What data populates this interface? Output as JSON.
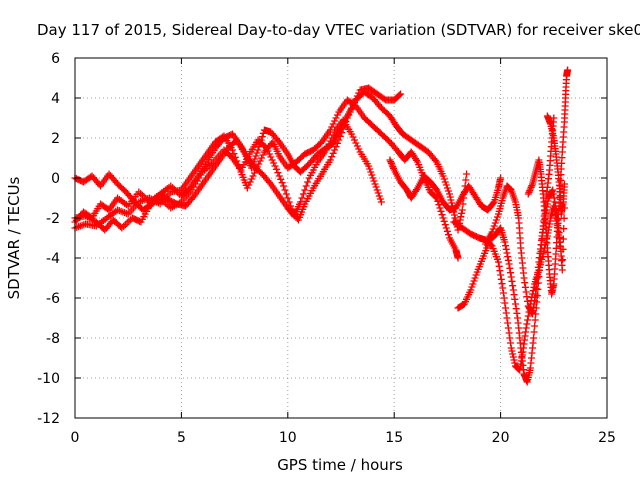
{
  "chart_data": {
    "type": "scatter",
    "title": "Day 117 of 2015, Sidereal Day-to-day VTEC variation (SDTVAR) for receiver ske0",
    "xlabel": "GPS time / hours",
    "ylabel": "SDTVAR / TECUs",
    "xlim": [
      0,
      25
    ],
    "ylim": [
      -12,
      6
    ],
    "x_ticks": [
      0,
      5,
      10,
      15,
      20,
      25
    ],
    "y_ticks": [
      -12,
      -10,
      -8,
      -6,
      -4,
      -2,
      0,
      2,
      4,
      6
    ],
    "x_tick_labels": [
      "0",
      "5",
      "10",
      "15",
      "20",
      "25"
    ],
    "y_tick_labels": [
      "-12",
      "-10",
      "-8",
      "-6",
      "-4",
      "-2",
      "0",
      "2",
      "4",
      "6"
    ],
    "grid": true,
    "marker": "+",
    "color": "#ff0000",
    "series": [
      {
        "points": [
          [
            0.0,
            -2.2
          ],
          [
            0.4,
            -1.7
          ],
          [
            0.8,
            -2.0
          ],
          [
            1.2,
            -1.3
          ],
          [
            1.6,
            -1.6
          ],
          [
            2.0,
            -1.0
          ],
          [
            2.5,
            -1.4
          ],
          [
            3.0,
            -0.7
          ],
          [
            3.5,
            -1.2
          ],
          [
            4.0,
            -0.8
          ],
          [
            4.5,
            -0.4
          ],
          [
            5.0,
            -0.9
          ],
          [
            5.4,
            -0.5
          ],
          [
            5.8,
            0.1
          ],
          [
            6.2,
            0.8
          ],
          [
            6.6,
            1.5
          ],
          [
            7.0,
            2.0
          ],
          [
            7.4,
            2.2
          ],
          [
            7.8,
            1.6
          ],
          [
            8.1,
            1.0
          ],
          [
            8.4,
            0.6
          ],
          [
            8.8,
            0.2
          ],
          [
            9.2,
            -0.3
          ],
          [
            9.6,
            -0.9
          ],
          [
            10.0,
            -1.5
          ],
          [
            10.3,
            -1.9
          ],
          [
            10.6,
            -1.2
          ],
          [
            11.0,
            0.0
          ],
          [
            11.4,
            0.8
          ],
          [
            11.8,
            1.4
          ],
          [
            12.2,
            2.3
          ],
          [
            12.6,
            2.9
          ],
          [
            13.0,
            2.2
          ],
          [
            13.4,
            1.3
          ],
          [
            13.8,
            0.6
          ],
          [
            14.1,
            -0.3
          ],
          [
            14.4,
            -1.2
          ]
        ]
      },
      {
        "points": [
          [
            0.0,
            -2.5
          ],
          [
            0.5,
            -2.3
          ],
          [
            1.0,
            -2.4
          ],
          [
            1.5,
            -2.0
          ],
          [
            2.0,
            -1.6
          ],
          [
            2.5,
            -1.8
          ],
          [
            3.0,
            -1.2
          ],
          [
            3.5,
            -1.0
          ],
          [
            4.0,
            -1.3
          ],
          [
            4.5,
            -0.7
          ],
          [
            5.0,
            -0.6
          ],
          [
            5.4,
            0.0
          ],
          [
            5.8,
            0.6
          ],
          [
            6.2,
            1.2
          ],
          [
            6.6,
            1.8
          ],
          [
            7.0,
            2.1
          ],
          [
            7.4,
            1.4
          ],
          [
            7.8,
            0.3
          ],
          [
            8.1,
            -0.5
          ],
          [
            8.5,
            0.4
          ],
          [
            8.9,
            1.3
          ],
          [
            9.3,
            1.8
          ],
          [
            9.6,
            1.1
          ],
          [
            10.0,
            0.5
          ],
          [
            10.4,
            0.8
          ],
          [
            10.8,
            1.2
          ],
          [
            11.2,
            1.4
          ],
          [
            11.6,
            1.8
          ],
          [
            12.0,
            2.4
          ],
          [
            12.4,
            3.3
          ],
          [
            12.8,
            3.9
          ],
          [
            13.2,
            3.6
          ],
          [
            13.6,
            3.0
          ],
          [
            14.0,
            2.6
          ],
          [
            14.4,
            2.2
          ],
          [
            14.8,
            1.8
          ],
          [
            15.2,
            1.3
          ],
          [
            15.5,
            0.9
          ],
          [
            15.8,
            1.3
          ],
          [
            16.1,
            0.8
          ],
          [
            16.4,
            0.0
          ],
          [
            16.7,
            -0.7
          ],
          [
            17.0,
            -1.0
          ],
          [
            17.3,
            -2.0
          ],
          [
            17.6,
            -3.0
          ],
          [
            17.9,
            -3.6
          ],
          [
            18.0,
            -4.0
          ]
        ]
      },
      {
        "points": [
          [
            0.0,
            -2.0
          ],
          [
            0.5,
            -1.9
          ],
          [
            1.0,
            -2.2
          ],
          [
            1.4,
            -2.6
          ],
          [
            1.8,
            -2.1
          ],
          [
            2.2,
            -2.5
          ],
          [
            2.7,
            -2.0
          ],
          [
            3.1,
            -2.2
          ],
          [
            3.5,
            -1.4
          ],
          [
            4.0,
            -1.0
          ],
          [
            4.5,
            -1.5
          ],
          [
            5.0,
            -1.2
          ],
          [
            5.5,
            -0.6
          ],
          [
            6.0,
            0.3
          ],
          [
            6.5,
            0.8
          ],
          [
            7.0,
            1.4
          ],
          [
            7.4,
            1.0
          ],
          [
            7.8,
            0.4
          ],
          [
            8.2,
            1.2
          ],
          [
            8.6,
            1.9
          ],
          [
            9.0,
            1.5
          ],
          [
            9.4,
            0.6
          ],
          [
            9.8,
            -0.4
          ],
          [
            10.2,
            -1.6
          ],
          [
            10.5,
            -2.1
          ],
          [
            10.8,
            -1.3
          ],
          [
            11.2,
            -0.5
          ],
          [
            11.6,
            0.2
          ],
          [
            12.0,
            0.9
          ],
          [
            12.4,
            1.9
          ],
          [
            12.8,
            3.0
          ],
          [
            13.2,
            3.9
          ],
          [
            13.6,
            4.3
          ],
          [
            14.0,
            4.0
          ],
          [
            14.4,
            3.5
          ],
          [
            14.8,
            3.1
          ],
          [
            15.1,
            2.6
          ],
          [
            15.4,
            2.2
          ],
          [
            15.8,
            1.9
          ],
          [
            16.2,
            1.6
          ],
          [
            16.6,
            1.3
          ],
          [
            17.0,
            0.8
          ],
          [
            17.3,
            0.1
          ],
          [
            17.6,
            -0.8
          ],
          [
            17.8,
            -1.7
          ],
          [
            18.0,
            -2.6
          ],
          [
            18.2,
            -1.6
          ],
          [
            18.4,
            0.2
          ]
        ]
      },
      {
        "points": [
          [
            0.0,
            0.0
          ],
          [
            0.4,
            -0.2
          ],
          [
            0.8,
            0.1
          ],
          [
            1.2,
            -0.4
          ],
          [
            1.6,
            0.2
          ],
          [
            2.0,
            -0.3
          ],
          [
            2.4,
            -0.7
          ],
          [
            2.8,
            -1.2
          ],
          [
            3.2,
            -1.6
          ],
          [
            3.6,
            -1.3
          ],
          [
            4.0,
            -0.8
          ],
          [
            4.4,
            -1.1
          ],
          [
            4.8,
            -1.3
          ],
          [
            5.2,
            -1.4
          ],
          [
            5.6,
            -0.9
          ],
          [
            6.0,
            -0.3
          ],
          [
            6.4,
            0.3
          ],
          [
            6.8,
            0.9
          ],
          [
            7.2,
            1.5
          ],
          [
            7.6,
            1.9
          ],
          [
            8.0,
            1.2
          ],
          [
            8.3,
            0.5
          ],
          [
            8.6,
            1.4
          ],
          [
            8.9,
            2.4
          ],
          [
            9.2,
            2.3
          ],
          [
            9.6,
            1.8
          ],
          [
            10.0,
            1.2
          ],
          [
            10.3,
            0.6
          ],
          [
            10.6,
            0.3
          ],
          [
            11.0,
            0.7
          ],
          [
            11.4,
            1.2
          ],
          [
            11.8,
            1.5
          ],
          [
            12.1,
            1.7
          ],
          [
            12.4,
            2.3
          ],
          [
            12.7,
            2.9
          ],
          [
            13.0,
            3.5
          ],
          [
            13.4,
            4.4
          ],
          [
            13.8,
            4.5
          ],
          [
            14.2,
            4.2
          ],
          [
            14.6,
            3.9
          ],
          [
            15.0,
            3.9
          ],
          [
            15.3,
            4.2
          ]
        ]
      },
      {
        "points": [
          [
            14.8,
            0.9
          ],
          [
            15.0,
            0.4
          ],
          [
            15.3,
            -0.2
          ],
          [
            15.6,
            -0.6
          ],
          [
            15.8,
            -1.0
          ],
          [
            16.1,
            -0.5
          ],
          [
            16.4,
            0.1
          ],
          [
            16.7,
            -0.2
          ],
          [
            17.0,
            -0.6
          ],
          [
            17.3,
            -1.2
          ],
          [
            17.6,
            -1.6
          ],
          [
            17.9,
            -1.5
          ],
          [
            18.2,
            -0.9
          ],
          [
            18.5,
            -0.4
          ],
          [
            18.8,
            -0.9
          ],
          [
            19.1,
            -1.4
          ],
          [
            19.4,
            -1.6
          ],
          [
            19.7,
            -1.2
          ],
          [
            19.9,
            -0.5
          ],
          [
            20.0,
            0.0
          ]
        ]
      },
      {
        "points": [
          [
            18.0,
            -6.5
          ],
          [
            18.3,
            -6.3
          ],
          [
            18.6,
            -5.6
          ],
          [
            18.9,
            -4.7
          ],
          [
            19.2,
            -3.9
          ],
          [
            19.5,
            -3.1
          ],
          [
            19.8,
            -2.8
          ],
          [
            20.0,
            -2.5
          ],
          [
            20.2,
            -3.2
          ],
          [
            20.4,
            -4.3
          ],
          [
            20.6,
            -5.6
          ],
          [
            20.8,
            -7.0
          ],
          [
            20.95,
            -8.5
          ],
          [
            21.1,
            -9.8
          ],
          [
            21.25,
            -10.2
          ],
          [
            21.4,
            -9.5
          ],
          [
            21.55,
            -8.0
          ],
          [
            21.7,
            -6.2
          ],
          [
            21.85,
            -4.3
          ],
          [
            22.0,
            -2.4
          ],
          [
            22.15,
            -0.9
          ],
          [
            22.3,
            0.4
          ],
          [
            22.4,
            1.8
          ],
          [
            22.5,
            3.0
          ]
        ]
      },
      {
        "points": [
          [
            17.8,
            -2.2
          ],
          [
            18.2,
            -2.5
          ],
          [
            18.6,
            -2.8
          ],
          [
            19.0,
            -3.0
          ],
          [
            19.3,
            -3.1
          ],
          [
            19.6,
            -3.4
          ],
          [
            19.9,
            -4.2
          ],
          [
            20.1,
            -5.5
          ],
          [
            20.3,
            -7.0
          ],
          [
            20.5,
            -8.5
          ],
          [
            20.7,
            -9.4
          ],
          [
            20.9,
            -9.6
          ],
          [
            21.05,
            -8.7
          ],
          [
            21.2,
            -7.5
          ],
          [
            21.4,
            -6.3
          ],
          [
            21.6,
            -5.3
          ],
          [
            21.8,
            -4.6
          ],
          [
            22.0,
            -3.8
          ],
          [
            22.2,
            -2.9
          ],
          [
            22.35,
            -2.0
          ],
          [
            22.5,
            -1.4
          ],
          [
            22.65,
            -2.3
          ],
          [
            22.8,
            -3.4
          ]
        ]
      },
      {
        "points": [
          [
            19.3,
            -3.3
          ],
          [
            19.6,
            -2.7
          ],
          [
            19.9,
            -1.8
          ],
          [
            20.1,
            -1.0
          ],
          [
            20.3,
            -0.4
          ],
          [
            20.5,
            -0.6
          ],
          [
            20.7,
            -1.2
          ],
          [
            20.85,
            -2.0
          ],
          [
            20.95,
            -3.5
          ],
          [
            21.1,
            -5.0
          ],
          [
            21.3,
            -6.4
          ],
          [
            21.5,
            -6.8
          ],
          [
            21.65,
            -5.8
          ],
          [
            21.8,
            -4.2
          ],
          [
            21.95,
            -2.9
          ],
          [
            22.1,
            -1.9
          ],
          [
            22.25,
            -1.0
          ],
          [
            22.45,
            -0.6
          ],
          [
            22.65,
            -1.8
          ],
          [
            22.8,
            -3.2
          ],
          [
            22.9,
            -4.6
          ],
          [
            23.0,
            -1.5
          ]
        ]
      },
      {
        "points": [
          [
            21.3,
            -0.8
          ],
          [
            21.5,
            -0.3
          ],
          [
            21.65,
            0.3
          ],
          [
            21.8,
            0.9
          ],
          [
            21.9,
            0.2
          ],
          [
            22.0,
            -0.8
          ],
          [
            22.1,
            -2.0
          ],
          [
            22.2,
            -3.5
          ],
          [
            22.3,
            -4.8
          ],
          [
            22.4,
            -5.8
          ],
          [
            22.5,
            -5.3
          ],
          [
            22.6,
            -3.8
          ],
          [
            22.7,
            -2.1
          ],
          [
            22.8,
            -0.4
          ],
          [
            22.9,
            1.3
          ],
          [
            23.0,
            2.8
          ],
          [
            23.05,
            4.0
          ],
          [
            23.1,
            5.1
          ],
          [
            23.15,
            5.4
          ]
        ]
      },
      {
        "points": [
          [
            22.2,
            3.1
          ],
          [
            22.35,
            2.7
          ],
          [
            22.5,
            2.0
          ],
          [
            22.6,
            1.2
          ],
          [
            22.7,
            0.3
          ],
          [
            22.8,
            -0.7
          ],
          [
            22.85,
            -1.8
          ],
          [
            22.95,
            -1.2
          ],
          [
            23.0,
            -0.3
          ]
        ]
      }
    ]
  }
}
